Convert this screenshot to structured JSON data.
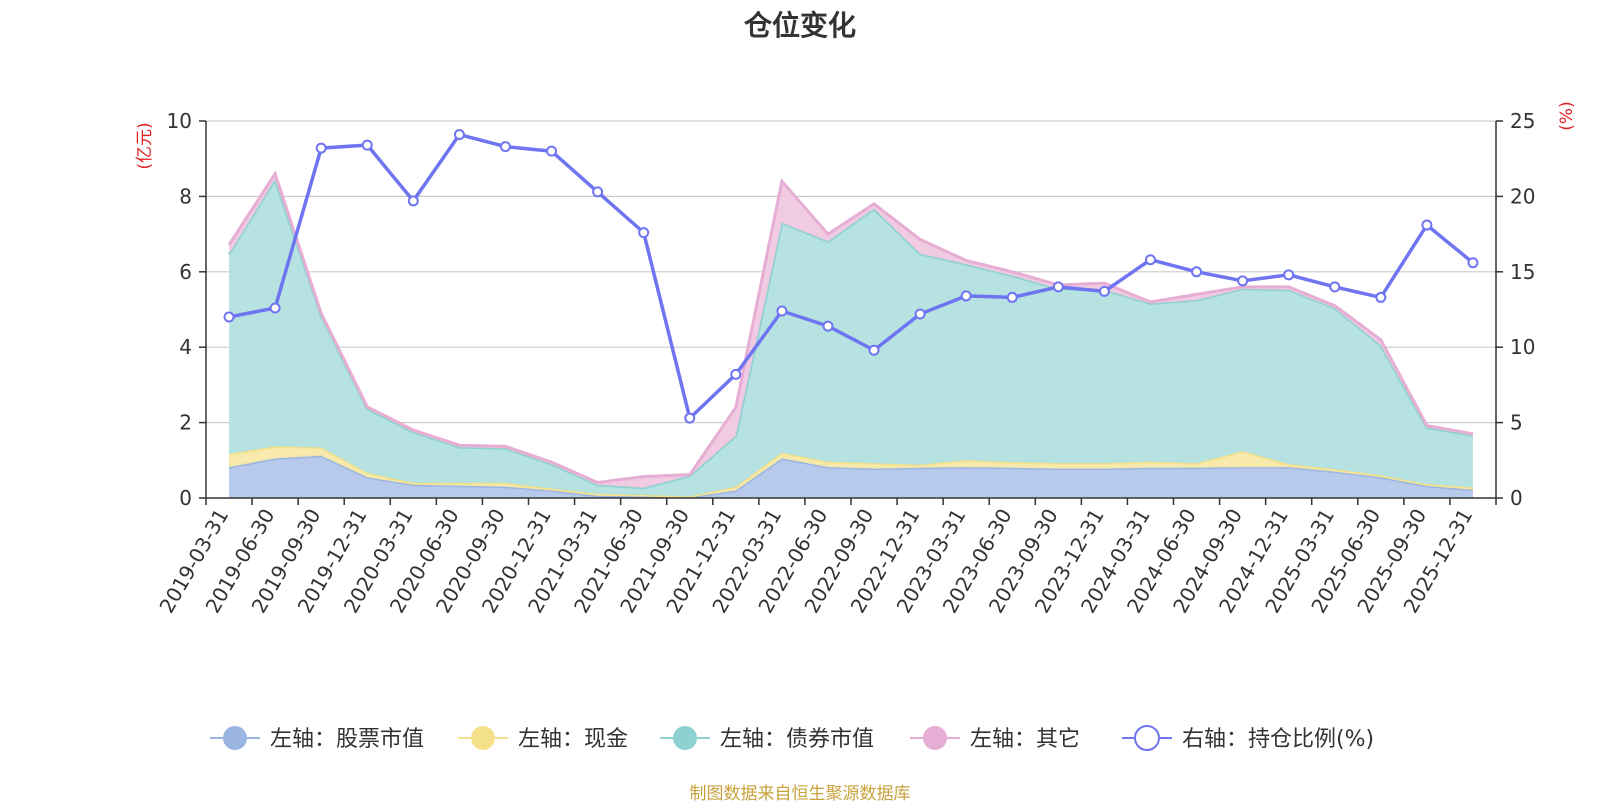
{
  "title": "仓位变化",
  "footer": "制图数据来自恒生聚源数据库",
  "chart_data": {
    "type": "area",
    "title": "仓位变化",
    "categories": [
      "2019-03-31",
      "2019-06-30",
      "2019-09-30",
      "2019-12-31",
      "2020-03-31",
      "2020-06-30",
      "2020-09-30",
      "2020-12-31",
      "2021-03-31",
      "2021-06-30",
      "2021-09-30",
      "2021-12-31",
      "2022-03-31",
      "2022-06-30",
      "2022-09-30",
      "2022-12-31",
      "2023-03-31",
      "2023-06-30",
      "2023-09-30",
      "2023-12-31",
      "2024-03-31",
      "2024-06-30",
      "2024-09-30",
      "2024-12-31",
      "2025-03-31",
      "2025-06-30",
      "2025-09-30",
      "2025-12-31"
    ],
    "left_axis": {
      "unit": "(亿元)",
      "ylim": [
        0,
        10
      ],
      "ticks": [
        0,
        2,
        4,
        6,
        8,
        10
      ]
    },
    "right_axis": {
      "unit": "(%)",
      "ylim": [
        0,
        25
      ],
      "ticks": [
        0,
        5,
        10,
        15,
        20,
        25
      ]
    },
    "grid": true,
    "legend_position": "bottom",
    "series": [
      {
        "name": "左轴：股票市值",
        "axis": "left",
        "stack": true,
        "color": "#9bb5e3",
        "fill": "#b4c7ea",
        "values": [
          0.82,
          1.05,
          1.12,
          0.55,
          0.35,
          0.33,
          0.3,
          0.2,
          0.06,
          0.04,
          0.02,
          0.2,
          1.05,
          0.82,
          0.78,
          0.8,
          0.82,
          0.8,
          0.78,
          0.78,
          0.8,
          0.8,
          0.82,
          0.82,
          0.7,
          0.55,
          0.32,
          0.22
        ]
      },
      {
        "name": "左轴：现金",
        "axis": "left",
        "stack": true,
        "color": "#f5e08a",
        "fill": "#f7e9a8",
        "values": [
          0.35,
          0.32,
          0.22,
          0.12,
          0.05,
          0.07,
          0.1,
          0.05,
          0.05,
          0.04,
          0.02,
          0.1,
          0.15,
          0.14,
          0.14,
          0.08,
          0.18,
          0.15,
          0.14,
          0.14,
          0.16,
          0.12,
          0.42,
          0.08,
          0.06,
          0.05,
          0.05,
          0.06
        ]
      },
      {
        "name": "左轴：债券市值",
        "axis": "left",
        "stack": true,
        "color": "#8dd1d1",
        "fill": "#b2e0e0",
        "values": [
          5.3,
          7.08,
          3.5,
          1.7,
          1.35,
          0.95,
          0.92,
          0.65,
          0.24,
          0.19,
          0.55,
          1.35,
          6.1,
          5.85,
          6.75,
          5.6,
          5.2,
          4.95,
          4.63,
          4.6,
          4.2,
          4.33,
          4.31,
          4.62,
          4.28,
          3.45,
          1.5,
          1.38
        ]
      },
      {
        "name": "左轴：其它",
        "axis": "left",
        "stack": true,
        "color": "#e6aed4",
        "fill": "#f0c8e0",
        "values": [
          0.25,
          0.15,
          0.06,
          0.05,
          0.05,
          0.05,
          0.05,
          0.05,
          0.06,
          0.3,
          0.03,
          0.75,
          1.1,
          0.19,
          0.13,
          0.38,
          0.1,
          0.1,
          0.1,
          0.18,
          0.04,
          0.15,
          0.05,
          0.08,
          0.06,
          0.15,
          0.05,
          0.04
        ]
      },
      {
        "name": "右轴：持仓比例(%)",
        "axis": "right",
        "stack": false,
        "color": "#6f74f0",
        "fill": "#ffffff",
        "values": [
          12.0,
          12.6,
          23.2,
          23.4,
          19.7,
          24.1,
          23.3,
          23.0,
          20.3,
          17.6,
          5.3,
          8.2,
          12.4,
          11.4,
          9.8,
          12.2,
          13.4,
          13.3,
          14.0,
          13.7,
          15.8,
          15.0,
          14.4,
          14.8,
          14.0,
          13.3,
          18.1,
          15.6
        ]
      }
    ]
  }
}
